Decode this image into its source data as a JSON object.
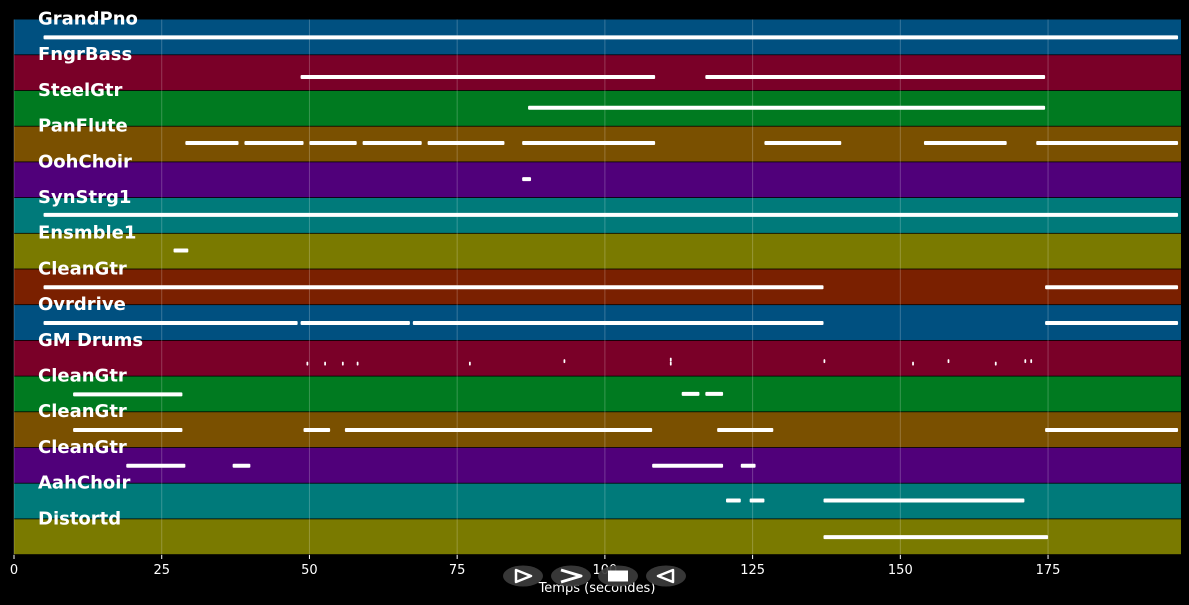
{
  "chart_data": {
    "type": "piano-roll",
    "xlabel": "Temps (secondes)",
    "xlim": [
      0,
      197.5
    ],
    "xticks": [
      0,
      25,
      50,
      75,
      100,
      125,
      150,
      175
    ],
    "xtick_labels": [
      "0",
      "25",
      "50",
      "75",
      "100",
      "125",
      "150",
      "175"
    ],
    "grid": true,
    "tracks": [
      {
        "name": "GrandPno",
        "color": "#005080",
        "notes": [
          [
            5,
            197,
            36
          ]
        ]
      },
      {
        "name": "FngrBass",
        "color": "#7a0028",
        "notes": [
          [
            48.5,
            108.5,
            44
          ],
          [
            117,
            174.5,
            44
          ]
        ]
      },
      {
        "name": "SteelGtr",
        "color": "#007a20",
        "notes": [
          [
            87,
            174.5,
            34
          ]
        ]
      },
      {
        "name": "PanFlute",
        "color": "#7a5000",
        "notes": [
          [
            29,
            38,
            33
          ],
          [
            39,
            49,
            33
          ],
          [
            50,
            58,
            33
          ],
          [
            59,
            69,
            33
          ],
          [
            70,
            83,
            33
          ],
          [
            86,
            108.5,
            33
          ],
          [
            127,
            140,
            33
          ],
          [
            154,
            168,
            33
          ],
          [
            173,
            197,
            33
          ]
        ]
      },
      {
        "name": "OohChoir",
        "color": "#50007a",
        "notes": [
          [
            86,
            87.5,
            34
          ]
        ]
      },
      {
        "name": "SynStrg1",
        "color": "#007a7a",
        "notes": [
          [
            5,
            197,
            34
          ]
        ]
      },
      {
        "name": "Ensmble1",
        "color": "#7a7a00",
        "notes": [
          [
            27,
            29.5,
            34
          ]
        ]
      },
      {
        "name": "CleanGtr",
        "color": "#7a2000",
        "notes": [
          [
            5,
            137,
            36
          ],
          [
            174.5,
            197,
            36
          ]
        ]
      },
      {
        "name": "Ovrdrive",
        "color": "#005080",
        "notes": [
          [
            5,
            48
          ],
          [
            48.5,
            67
          ],
          [
            67.5,
            137
          ],
          [
            174.5,
            197
          ]
        ]
      },
      {
        "name": "GM Drums",
        "color": "#7a0028",
        "notes": [
          [
            49.5,
            49.8,
            46
          ],
          [
            52.5,
            52.8,
            46
          ],
          [
            55.5,
            55.8,
            46
          ],
          [
            58,
            58.3,
            46
          ],
          [
            77,
            77.3,
            46
          ],
          [
            93,
            93.3,
            41
          ],
          [
            111,
            111.3,
            46
          ],
          [
            111,
            111.3,
            38
          ],
          [
            137,
            137.3,
            41
          ],
          [
            152,
            152.3,
            46
          ],
          [
            158,
            158.3,
            41
          ],
          [
            166,
            166.3,
            46
          ],
          [
            171,
            171.3,
            41
          ],
          [
            172,
            172.3,
            41
          ]
        ]
      },
      {
        "name": "CleanGtr",
        "color": "#007a20",
        "notes": [
          [
            10,
            28.5,
            36
          ],
          [
            113,
            116,
            35
          ],
          [
            117,
            120,
            35
          ]
        ]
      },
      {
        "name": "CleanGtr",
        "color": "#7a5000",
        "notes": [
          [
            10,
            28.5,
            36
          ],
          [
            49,
            53.5,
            36
          ],
          [
            56,
            108,
            36
          ],
          [
            119,
            128.5,
            36
          ],
          [
            174.5,
            197,
            36
          ]
        ]
      },
      {
        "name": "CleanGtr",
        "color": "#50007a",
        "notes": [
          [
            19,
            29,
            36
          ],
          [
            37,
            40,
            36
          ],
          [
            108,
            120,
            36
          ],
          [
            123,
            125.5,
            36
          ]
        ]
      },
      {
        "name": "AahChoir",
        "color": "#007a7a",
        "notes": [
          [
            120.5,
            123,
            34
          ],
          [
            124.5,
            127,
            34
          ],
          [
            137,
            171,
            34
          ]
        ]
      },
      {
        "name": "Distortd",
        "color": "#7a7a00",
        "notes": [
          [
            137,
            175,
            36
          ]
        ]
      }
    ]
  },
  "controls": {
    "buttons": [
      {
        "name": "play-button",
        "glyph": "play-outline"
      },
      {
        "name": "forward-button",
        "glyph": "chevron-right"
      },
      {
        "name": "stop-button",
        "glyph": "square"
      },
      {
        "name": "rewind-button",
        "glyph": "triangle-left"
      }
    ]
  }
}
